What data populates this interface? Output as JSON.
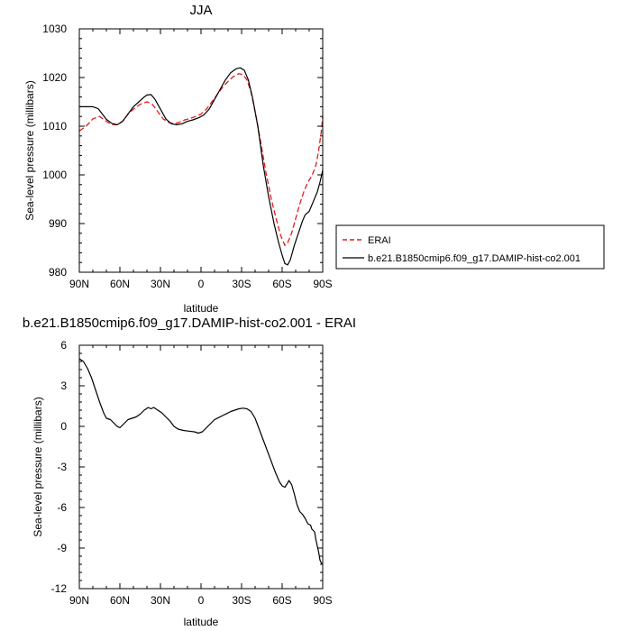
{
  "chart_data": [
    {
      "type": "line",
      "title": "JJA",
      "xlabel": "latitude",
      "ylabel": "Sea-level pressure (millibars)",
      "xlim": [
        90,
        -90
      ],
      "ylim": [
        980,
        1030
      ],
      "x_ticks": [
        {
          "value": 90,
          "label": "90N"
        },
        {
          "value": 60,
          "label": "60N"
        },
        {
          "value": 30,
          "label": "30N"
        },
        {
          "value": 0,
          "label": "0"
        },
        {
          "value": -30,
          "label": "30S"
        },
        {
          "value": -60,
          "label": "60S"
        },
        {
          "value": -90,
          "label": "90S"
        }
      ],
      "y_ticks": [
        {
          "value": 980,
          "label": "980"
        },
        {
          "value": 990,
          "label": "990"
        },
        {
          "value": 1000,
          "label": "1000"
        },
        {
          "value": 1010,
          "label": "1010"
        },
        {
          "value": 1020,
          "label": "1020"
        },
        {
          "value": 1030,
          "label": "1030"
        }
      ],
      "legend_position": "right",
      "series": [
        {
          "name": "ERAI",
          "color": "#e41a1c",
          "dash": "dashed",
          "points": [
            [
              90,
              1009
            ],
            [
              85,
              1010
            ],
            [
              80,
              1011.5
            ],
            [
              75,
              1012
            ],
            [
              70,
              1011
            ],
            [
              66,
              1010.3
            ],
            [
              62,
              1010.3
            ],
            [
              58,
              1011
            ],
            [
              54,
              1012.5
            ],
            [
              50,
              1013.5
            ],
            [
              45,
              1014.5
            ],
            [
              40,
              1015
            ],
            [
              36,
              1014.5
            ],
            [
              32,
              1013
            ],
            [
              28,
              1011.5
            ],
            [
              24,
              1010.8
            ],
            [
              20,
              1010.5
            ],
            [
              16,
              1010.8
            ],
            [
              12,
              1011.3
            ],
            [
              8,
              1011.6
            ],
            [
              4,
              1012
            ],
            [
              0,
              1012.5
            ],
            [
              -4,
              1013.5
            ],
            [
              -8,
              1015
            ],
            [
              -12,
              1016.5
            ],
            [
              -16,
              1018
            ],
            [
              -20,
              1019.2
            ],
            [
              -24,
              1020.2
            ],
            [
              -28,
              1020.8
            ],
            [
              -31,
              1020.6
            ],
            [
              -34,
              1019.5
            ],
            [
              -37,
              1017
            ],
            [
              -40,
              1013
            ],
            [
              -44,
              1007
            ],
            [
              -48,
              1000.5
            ],
            [
              -52,
              995
            ],
            [
              -56,
              990.5
            ],
            [
              -59,
              987.5
            ],
            [
              -62,
              985.5
            ],
            [
              -64,
              986
            ],
            [
              -67,
              988
            ],
            [
              -70,
              991
            ],
            [
              -73,
              994
            ],
            [
              -76,
              996.5
            ],
            [
              -79,
              998.5
            ],
            [
              -82,
              999.8
            ],
            [
              -85,
              1002
            ],
            [
              -87,
              1005
            ],
            [
              -89,
              1009
            ],
            [
              -90,
              1012
            ]
          ]
        },
        {
          "name": "b.e21.B1850cmip6.f09_g17.DAMIP-hist-co2.001",
          "color": "#000000",
          "dash": "solid",
          "points": [
            [
              90,
              1014
            ],
            [
              85,
              1014
            ],
            [
              80,
              1014
            ],
            [
              76,
              1013.6
            ],
            [
              73,
              1012.5
            ],
            [
              70,
              1011.4
            ],
            [
              66,
              1010.6
            ],
            [
              62,
              1010.3
            ],
            [
              58,
              1011
            ],
            [
              54,
              1012.5
            ],
            [
              50,
              1014
            ],
            [
              46,
              1015
            ],
            [
              42,
              1016
            ],
            [
              40,
              1016.4
            ],
            [
              37,
              1016.5
            ],
            [
              34,
              1015.5
            ],
            [
              30,
              1013.5
            ],
            [
              26,
              1011.5
            ],
            [
              22,
              1010.5
            ],
            [
              18,
              1010.3
            ],
            [
              14,
              1010.5
            ],
            [
              10,
              1011
            ],
            [
              6,
              1011.3
            ],
            [
              2,
              1011.7
            ],
            [
              -2,
              1012.3
            ],
            [
              -6,
              1013.5
            ],
            [
              -10,
              1015.5
            ],
            [
              -14,
              1017.5
            ],
            [
              -18,
              1019.5
            ],
            [
              -22,
              1021
            ],
            [
              -26,
              1021.8
            ],
            [
              -29,
              1022
            ],
            [
              -32,
              1021.5
            ],
            [
              -35,
              1019.5
            ],
            [
              -38,
              1016
            ],
            [
              -42,
              1010
            ],
            [
              -46,
              1002
            ],
            [
              -50,
              995.5
            ],
            [
              -54,
              990
            ],
            [
              -57,
              986.5
            ],
            [
              -60,
              983.5
            ],
            [
              -62,
              981.8
            ],
            [
              -64,
              981.5
            ],
            [
              -66,
              982.5
            ],
            [
              -69,
              985.5
            ],
            [
              -72,
              988
            ],
            [
              -75,
              990.5
            ],
            [
              -77,
              991.8
            ],
            [
              -80,
              992.5
            ],
            [
              -83,
              994.5
            ],
            [
              -86,
              996.5
            ],
            [
              -88,
              998.5
            ],
            [
              -90,
              1001
            ]
          ]
        }
      ]
    },
    {
      "type": "line",
      "title": "b.e21.B1850cmip6.f09_g17.DAMIP-hist-co2.001 - ERAI",
      "xlabel": "latitude",
      "ylabel": "Sea-level pressure (millibars)",
      "xlim": [
        90,
        -90
      ],
      "ylim": [
        -12,
        6
      ],
      "x_ticks": [
        {
          "value": 90,
          "label": "90N"
        },
        {
          "value": 60,
          "label": "60N"
        },
        {
          "value": 30,
          "label": "30N"
        },
        {
          "value": 0,
          "label": "0"
        },
        {
          "value": -30,
          "label": "30S"
        },
        {
          "value": -60,
          "label": "60S"
        },
        {
          "value": -90,
          "label": "90S"
        }
      ],
      "y_ticks": [
        {
          "value": 6,
          "label": "6"
        },
        {
          "value": 3,
          "label": "3"
        },
        {
          "value": 0,
          "label": "0"
        },
        {
          "value": -3,
          "label": "-3"
        },
        {
          "value": -6,
          "label": "-6"
        },
        {
          "value": -9,
          "label": "-9"
        },
        {
          "value": -12,
          "label": "-12"
        }
      ],
      "series": [
        {
          "color": "#000000",
          "dash": "solid",
          "points": [
            [
              90,
              5
            ],
            [
              87,
              4.8
            ],
            [
              84,
              4.3
            ],
            [
              81,
              3.6
            ],
            [
              78,
              2.7
            ],
            [
              75,
              1.8
            ],
            [
              72,
              1
            ],
            [
              70,
              0.6
            ],
            [
              67,
              0.5
            ],
            [
              64,
              0.2
            ],
            [
              62,
              0
            ],
            [
              60,
              -0.1
            ],
            [
              58,
              0.1
            ],
            [
              56,
              0.3
            ],
            [
              54,
              0.5
            ],
            [
              51,
              0.6
            ],
            [
              48,
              0.7
            ],
            [
              45,
              0.9
            ],
            [
              42,
              1.2
            ],
            [
              39,
              1.4
            ],
            [
              37,
              1.3
            ],
            [
              35,
              1.4
            ],
            [
              32,
              1.2
            ],
            [
              29,
              1
            ],
            [
              26,
              0.7
            ],
            [
              23,
              0.4
            ],
            [
              20,
              0
            ],
            [
              17,
              -0.2
            ],
            [
              13,
              -0.3
            ],
            [
              9,
              -0.35
            ],
            [
              5,
              -0.4
            ],
            [
              2,
              -0.5
            ],
            [
              -1,
              -0.4
            ],
            [
              -4,
              -0.1
            ],
            [
              -7,
              0.2
            ],
            [
              -10,
              0.5
            ],
            [
              -13,
              0.65
            ],
            [
              -16,
              0.8
            ],
            [
              -19,
              0.95
            ],
            [
              -22,
              1.1
            ],
            [
              -25,
              1.2
            ],
            [
              -28,
              1.3
            ],
            [
              -31,
              1.35
            ],
            [
              -34,
              1.3
            ],
            [
              -37,
              1.1
            ],
            [
              -40,
              0.6
            ],
            [
              -43,
              -0.2
            ],
            [
              -46,
              -1
            ],
            [
              -49,
              -1.8
            ],
            [
              -52,
              -2.6
            ],
            [
              -55,
              -3.4
            ],
            [
              -58,
              -4.1
            ],
            [
              -60,
              -4.4
            ],
            [
              -62,
              -4.5
            ],
            [
              -64,
              -4.2
            ],
            [
              -65,
              -4
            ],
            [
              -67,
              -4.3
            ],
            [
              -69,
              -5
            ],
            [
              -71,
              -5.8
            ],
            [
              -73,
              -6.3
            ],
            [
              -75,
              -6.5
            ],
            [
              -77,
              -6.8
            ],
            [
              -79,
              -7.2
            ],
            [
              -81,
              -7.3
            ],
            [
              -82,
              -7.6
            ],
            [
              -84,
              -7.8
            ],
            [
              -85,
              -8.4
            ],
            [
              -87,
              -9.3
            ],
            [
              -88,
              -9.9
            ],
            [
              -89,
              -10.1
            ],
            [
              -90,
              -10.2
            ]
          ]
        }
      ]
    }
  ]
}
